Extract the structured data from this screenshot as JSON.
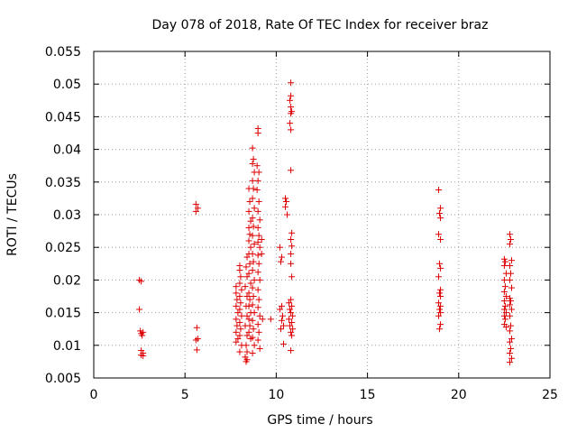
{
  "chart_data": {
    "type": "scatter",
    "title": "Day 078 of 2018, Rate Of TEC Index for receiver braz",
    "xlabel": "GPS time / hours",
    "ylabel": "ROTI / TECUs",
    "xlim": [
      0,
      25
    ],
    "ylim": [
      0.005,
      0.055
    ],
    "xticks": [
      0,
      5,
      10,
      15,
      20,
      25
    ],
    "xtick_labels": [
      "0",
      "5",
      "10",
      "15",
      "20",
      "25"
    ],
    "yticks": [
      0.005,
      0.01,
      0.015,
      0.02,
      0.025,
      0.03,
      0.035,
      0.04,
      0.045,
      0.05,
      0.055
    ],
    "ytick_labels": [
      "0.005",
      "0.01",
      "0.015",
      "0.02",
      "0.025",
      "0.03",
      "0.035",
      "0.04",
      "0.045",
      "0.05",
      "0.055"
    ],
    "grid": true,
    "marker": "plus",
    "color": "#dd0000",
    "points": [
      [
        2.5,
        0.02
      ],
      [
        2.6,
        0.0198
      ],
      [
        2.5,
        0.0155
      ],
      [
        2.55,
        0.0122
      ],
      [
        2.6,
        0.0118
      ],
      [
        2.7,
        0.012
      ],
      [
        2.65,
        0.0115
      ],
      [
        2.6,
        0.0092
      ],
      [
        2.7,
        0.0088
      ],
      [
        2.6,
        0.0085
      ],
      [
        2.7,
        0.0084
      ],
      [
        5.6,
        0.0316
      ],
      [
        5.7,
        0.031
      ],
      [
        5.6,
        0.0305
      ],
      [
        5.65,
        0.0127
      ],
      [
        5.7,
        0.011
      ],
      [
        5.6,
        0.0108
      ],
      [
        5.65,
        0.0093
      ],
      [
        7.8,
        0.019
      ],
      [
        7.8,
        0.018
      ],
      [
        7.85,
        0.017
      ],
      [
        7.8,
        0.016
      ],
      [
        7.9,
        0.015
      ],
      [
        7.8,
        0.014
      ],
      [
        7.85,
        0.013
      ],
      [
        7.8,
        0.012
      ],
      [
        7.9,
        0.011
      ],
      [
        7.8,
        0.0105
      ],
      [
        8.0,
        0.0222
      ],
      [
        8.0,
        0.0215
      ],
      [
        8.05,
        0.0205
      ],
      [
        8.0,
        0.0195
      ],
      [
        8.1,
        0.0185
      ],
      [
        8.0,
        0.0175
      ],
      [
        8.05,
        0.0165
      ],
      [
        8.0,
        0.0155
      ],
      [
        8.1,
        0.0145
      ],
      [
        8.0,
        0.0135
      ],
      [
        8.05,
        0.0125
      ],
      [
        8.0,
        0.0115
      ],
      [
        8.1,
        0.01
      ],
      [
        8.0,
        0.009
      ],
      [
        8.4,
        0.0235
      ],
      [
        8.35,
        0.022
      ],
      [
        8.4,
        0.0205
      ],
      [
        8.3,
        0.019
      ],
      [
        8.4,
        0.0175
      ],
      [
        8.35,
        0.016
      ],
      [
        8.4,
        0.0145
      ],
      [
        8.3,
        0.013
      ],
      [
        8.4,
        0.0115
      ],
      [
        8.35,
        0.01
      ],
      [
        8.4,
        0.009
      ],
      [
        8.3,
        0.0082
      ],
      [
        8.4,
        0.0078
      ],
      [
        8.35,
        0.0075
      ],
      [
        8.5,
        0.034
      ],
      [
        8.55,
        0.032
      ],
      [
        8.5,
        0.0305
      ],
      [
        8.6,
        0.029
      ],
      [
        8.5,
        0.028
      ],
      [
        8.55,
        0.027
      ],
      [
        8.5,
        0.026
      ],
      [
        8.6,
        0.025
      ],
      [
        8.5,
        0.024
      ],
      [
        8.55,
        0.0225
      ],
      [
        8.5,
        0.021
      ],
      [
        8.6,
        0.0195
      ],
      [
        8.5,
        0.018
      ],
      [
        8.55,
        0.017
      ],
      [
        8.5,
        0.016
      ],
      [
        8.6,
        0.015
      ],
      [
        8.5,
        0.014
      ],
      [
        8.55,
        0.013
      ],
      [
        8.5,
        0.012
      ],
      [
        8.6,
        0.011
      ],
      [
        8.7,
        0.0402
      ],
      [
        8.75,
        0.0385
      ],
      [
        8.7,
        0.0378
      ],
      [
        8.8,
        0.0365
      ],
      [
        8.7,
        0.0352
      ],
      [
        8.75,
        0.034
      ],
      [
        8.7,
        0.0325
      ],
      [
        8.8,
        0.031
      ],
      [
        8.7,
        0.0295
      ],
      [
        8.75,
        0.0282
      ],
      [
        8.7,
        0.0268
      ],
      [
        8.8,
        0.0255
      ],
      [
        8.7,
        0.024
      ],
      [
        8.75,
        0.0228
      ],
      [
        8.7,
        0.0215
      ],
      [
        8.8,
        0.02
      ],
      [
        8.7,
        0.0188
      ],
      [
        8.75,
        0.0175
      ],
      [
        8.7,
        0.0162
      ],
      [
        8.8,
        0.015
      ],
      [
        8.7,
        0.0138
      ],
      [
        8.75,
        0.0125
      ],
      [
        8.7,
        0.0112
      ],
      [
        8.8,
        0.01
      ],
      [
        8.7,
        0.0088
      ],
      [
        9.0,
        0.0432
      ],
      [
        9.0,
        0.0425
      ],
      [
        8.95,
        0.0375
      ],
      [
        9.05,
        0.0365
      ],
      [
        9.0,
        0.0352
      ],
      [
        8.95,
        0.0338
      ],
      [
        9.05,
        0.032
      ],
      [
        9.0,
        0.0305
      ],
      [
        9.1,
        0.0292
      ],
      [
        9.0,
        0.028
      ],
      [
        9.05,
        0.0268
      ],
      [
        9.0,
        0.0258
      ],
      [
        9.1,
        0.025
      ],
      [
        9.0,
        0.0238
      ],
      [
        9.05,
        0.0225
      ],
      [
        9.0,
        0.0212
      ],
      [
        9.1,
        0.02
      ],
      [
        9.0,
        0.0185
      ],
      [
        9.05,
        0.017
      ],
      [
        9.0,
        0.0158
      ],
      [
        9.1,
        0.0145
      ],
      [
        9.0,
        0.0132
      ],
      [
        9.05,
        0.012
      ],
      [
        9.0,
        0.0108
      ],
      [
        9.1,
        0.0095
      ],
      [
        9.2,
        0.0262
      ],
      [
        9.2,
        0.024
      ],
      [
        9.25,
        0.014
      ],
      [
        9.7,
        0.014
      ],
      [
        10.2,
        0.025
      ],
      [
        10.3,
        0.0235
      ],
      [
        10.25,
        0.0228
      ],
      [
        10.3,
        0.016
      ],
      [
        10.2,
        0.0155
      ],
      [
        10.35,
        0.0145
      ],
      [
        10.3,
        0.0138
      ],
      [
        10.4,
        0.013
      ],
      [
        10.25,
        0.0125
      ],
      [
        10.4,
        0.0102
      ],
      [
        10.5,
        0.0325
      ],
      [
        10.55,
        0.032
      ],
      [
        10.5,
        0.0312
      ],
      [
        10.6,
        0.03
      ],
      [
        10.8,
        0.0502
      ],
      [
        10.8,
        0.0482
      ],
      [
        10.75,
        0.0475
      ],
      [
        10.8,
        0.0465
      ],
      [
        10.85,
        0.0458
      ],
      [
        10.8,
        0.0455
      ],
      [
        10.75,
        0.044
      ],
      [
        10.8,
        0.043
      ],
      [
        10.8,
        0.0368
      ],
      [
        10.85,
        0.0272
      ],
      [
        10.8,
        0.0262
      ],
      [
        10.85,
        0.0252
      ],
      [
        10.8,
        0.024
      ],
      [
        10.8,
        0.0225
      ],
      [
        10.85,
        0.0205
      ],
      [
        10.8,
        0.017
      ],
      [
        10.7,
        0.0165
      ],
      [
        10.85,
        0.016
      ],
      [
        10.75,
        0.0155
      ],
      [
        10.8,
        0.015
      ],
      [
        10.9,
        0.0145
      ],
      [
        10.7,
        0.014
      ],
      [
        10.85,
        0.0135
      ],
      [
        10.75,
        0.013
      ],
      [
        10.9,
        0.0125
      ],
      [
        10.8,
        0.012
      ],
      [
        10.85,
        0.0115
      ],
      [
        10.8,
        0.0092
      ],
      [
        18.9,
        0.0338
      ],
      [
        19.0,
        0.031
      ],
      [
        18.95,
        0.0302
      ],
      [
        19.0,
        0.0295
      ],
      [
        18.9,
        0.027
      ],
      [
        19.0,
        0.0262
      ],
      [
        18.95,
        0.0225
      ],
      [
        19.0,
        0.0218
      ],
      [
        18.9,
        0.0205
      ],
      [
        19.0,
        0.0185
      ],
      [
        18.95,
        0.018
      ],
      [
        19.0,
        0.0175
      ],
      [
        18.9,
        0.0165
      ],
      [
        19.0,
        0.016
      ],
      [
        18.95,
        0.0155
      ],
      [
        19.0,
        0.015
      ],
      [
        18.9,
        0.0145
      ],
      [
        19.0,
        0.0132
      ],
      [
        18.95,
        0.0125
      ],
      [
        22.5,
        0.0232
      ],
      [
        22.55,
        0.0228
      ],
      [
        22.5,
        0.0222
      ],
      [
        22.6,
        0.021
      ],
      [
        22.5,
        0.02
      ],
      [
        22.55,
        0.019
      ],
      [
        22.5,
        0.0182
      ],
      [
        22.6,
        0.0175
      ],
      [
        22.5,
        0.0168
      ],
      [
        22.55,
        0.016
      ],
      [
        22.5,
        0.0155
      ],
      [
        22.6,
        0.015
      ],
      [
        22.5,
        0.0145
      ],
      [
        22.55,
        0.014
      ],
      [
        22.5,
        0.0132
      ],
      [
        22.6,
        0.0128
      ],
      [
        22.8,
        0.027
      ],
      [
        22.85,
        0.0262
      ],
      [
        22.8,
        0.0255
      ],
      [
        22.9,
        0.023
      ],
      [
        22.8,
        0.0222
      ],
      [
        22.85,
        0.021
      ],
      [
        22.8,
        0.02
      ],
      [
        22.9,
        0.0188
      ],
      [
        22.8,
        0.0172
      ],
      [
        22.85,
        0.0168
      ],
      [
        22.8,
        0.0162
      ],
      [
        22.9,
        0.0155
      ],
      [
        22.8,
        0.0145
      ],
      [
        22.85,
        0.013
      ],
      [
        22.8,
        0.0122
      ],
      [
        22.9,
        0.011
      ],
      [
        22.8,
        0.0105
      ],
      [
        22.85,
        0.0095
      ],
      [
        22.8,
        0.0088
      ],
      [
        22.9,
        0.008
      ],
      [
        22.8,
        0.0074
      ]
    ]
  }
}
